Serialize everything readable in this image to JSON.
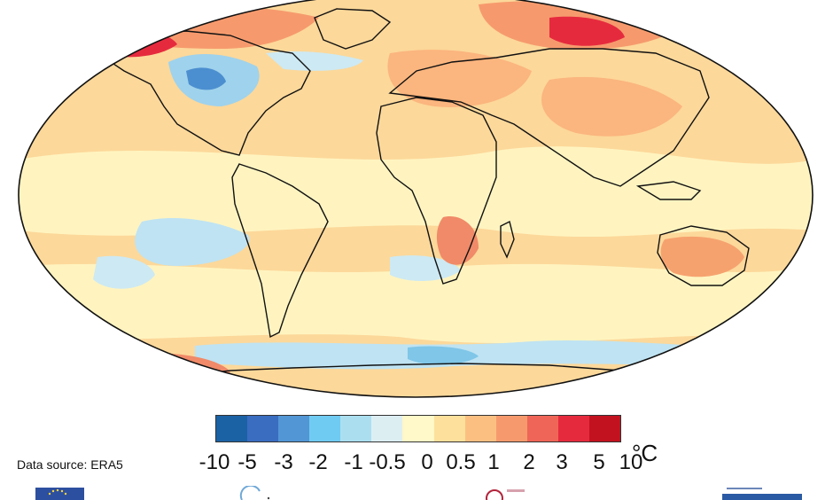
{
  "colorbar": {
    "ticks": [
      "-10",
      "-5",
      "-3",
      "-2",
      "-1",
      "-0.5",
      "0",
      "0.5",
      "1",
      "2",
      "3",
      "5",
      "10"
    ],
    "colors": [
      "#1b62a5",
      "#3a6cc0",
      "#5296d6",
      "#6fcbf2",
      "#abdff0",
      "#ddeef3",
      "#fff8c8",
      "#fde09c",
      "#fcbf82",
      "#f69a6d",
      "#ef6557",
      "#e62a3e",
      "#c3121f"
    ],
    "unit": "°C"
  },
  "footer": {
    "source": "Data source: ERA5"
  },
  "logos": {
    "eu": "eu-flag-logo",
    "copernicus": "copernicus-logo",
    "climate": "climate-change-service-logo",
    "ecmwf": "ecmwf-logo"
  }
}
